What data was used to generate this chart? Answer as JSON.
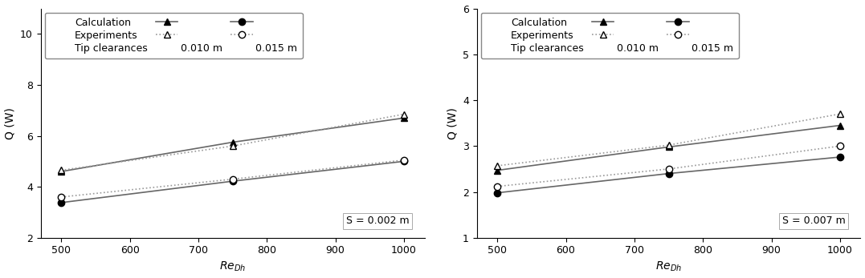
{
  "left": {
    "title_text": "S = 0.002 m",
    "x": [
      500,
      750,
      1000
    ],
    "calc_010": [
      4.6,
      5.75,
      6.7
    ],
    "calc_015": [
      3.38,
      4.22,
      5.0
    ],
    "exp_010": [
      4.65,
      5.6,
      6.85
    ],
    "exp_015": [
      3.6,
      4.3,
      5.05
    ],
    "ylim": [
      2,
      11
    ],
    "yticks": [
      2,
      4,
      6,
      8,
      10
    ],
    "ylabel": "Q (W)"
  },
  "right": {
    "title_text": "S = 0.007 m",
    "x": [
      500,
      750,
      1000
    ],
    "calc_010": [
      2.47,
      2.98,
      3.45
    ],
    "calc_015": [
      1.98,
      2.4,
      2.76
    ],
    "exp_010": [
      2.57,
      3.02,
      3.7
    ],
    "exp_015": [
      2.12,
      2.5,
      3.0
    ],
    "ylim": [
      1,
      6
    ],
    "yticks": [
      1,
      2,
      3,
      4,
      5,
      6
    ],
    "ylabel": "Q (W)"
  },
  "xticks": [
    500,
    600,
    700,
    800,
    900,
    1000
  ],
  "xlim": [
    470,
    1030
  ],
  "xlabel": "Re$_{Dh}$",
  "color_calc": "#666666",
  "color_exp": "#999999",
  "linewidth": 1.2,
  "markersize": 6,
  "legend_col1": "Calculation",
  "legend_col2": "Experiments",
  "legend_col3": "Tip clearances",
  "legend_row1": "0.010 m",
  "legend_row2": "0.015 m",
  "fontsize": 9,
  "label_fontsize": 10,
  "tick_fontsize": 9
}
